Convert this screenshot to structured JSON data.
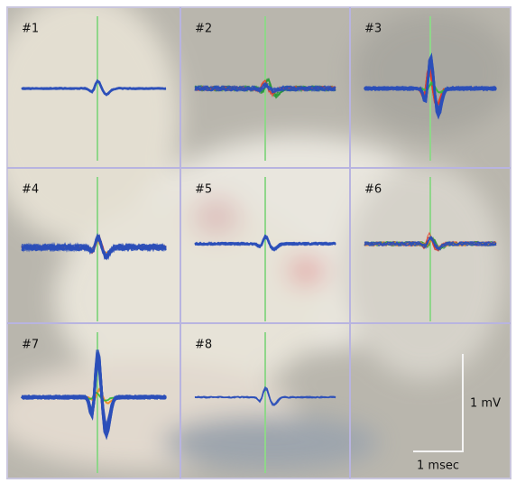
{
  "panels": [
    {
      "label": "#1"
    },
    {
      "label": "#2"
    },
    {
      "label": "#3"
    },
    {
      "label": "#4"
    },
    {
      "label": "#5"
    },
    {
      "label": "#6"
    },
    {
      "label": "#7"
    },
    {
      "label": "#8"
    }
  ],
  "scale_bar": {
    "voltage": "1 mV",
    "time": "1 msec"
  }
}
